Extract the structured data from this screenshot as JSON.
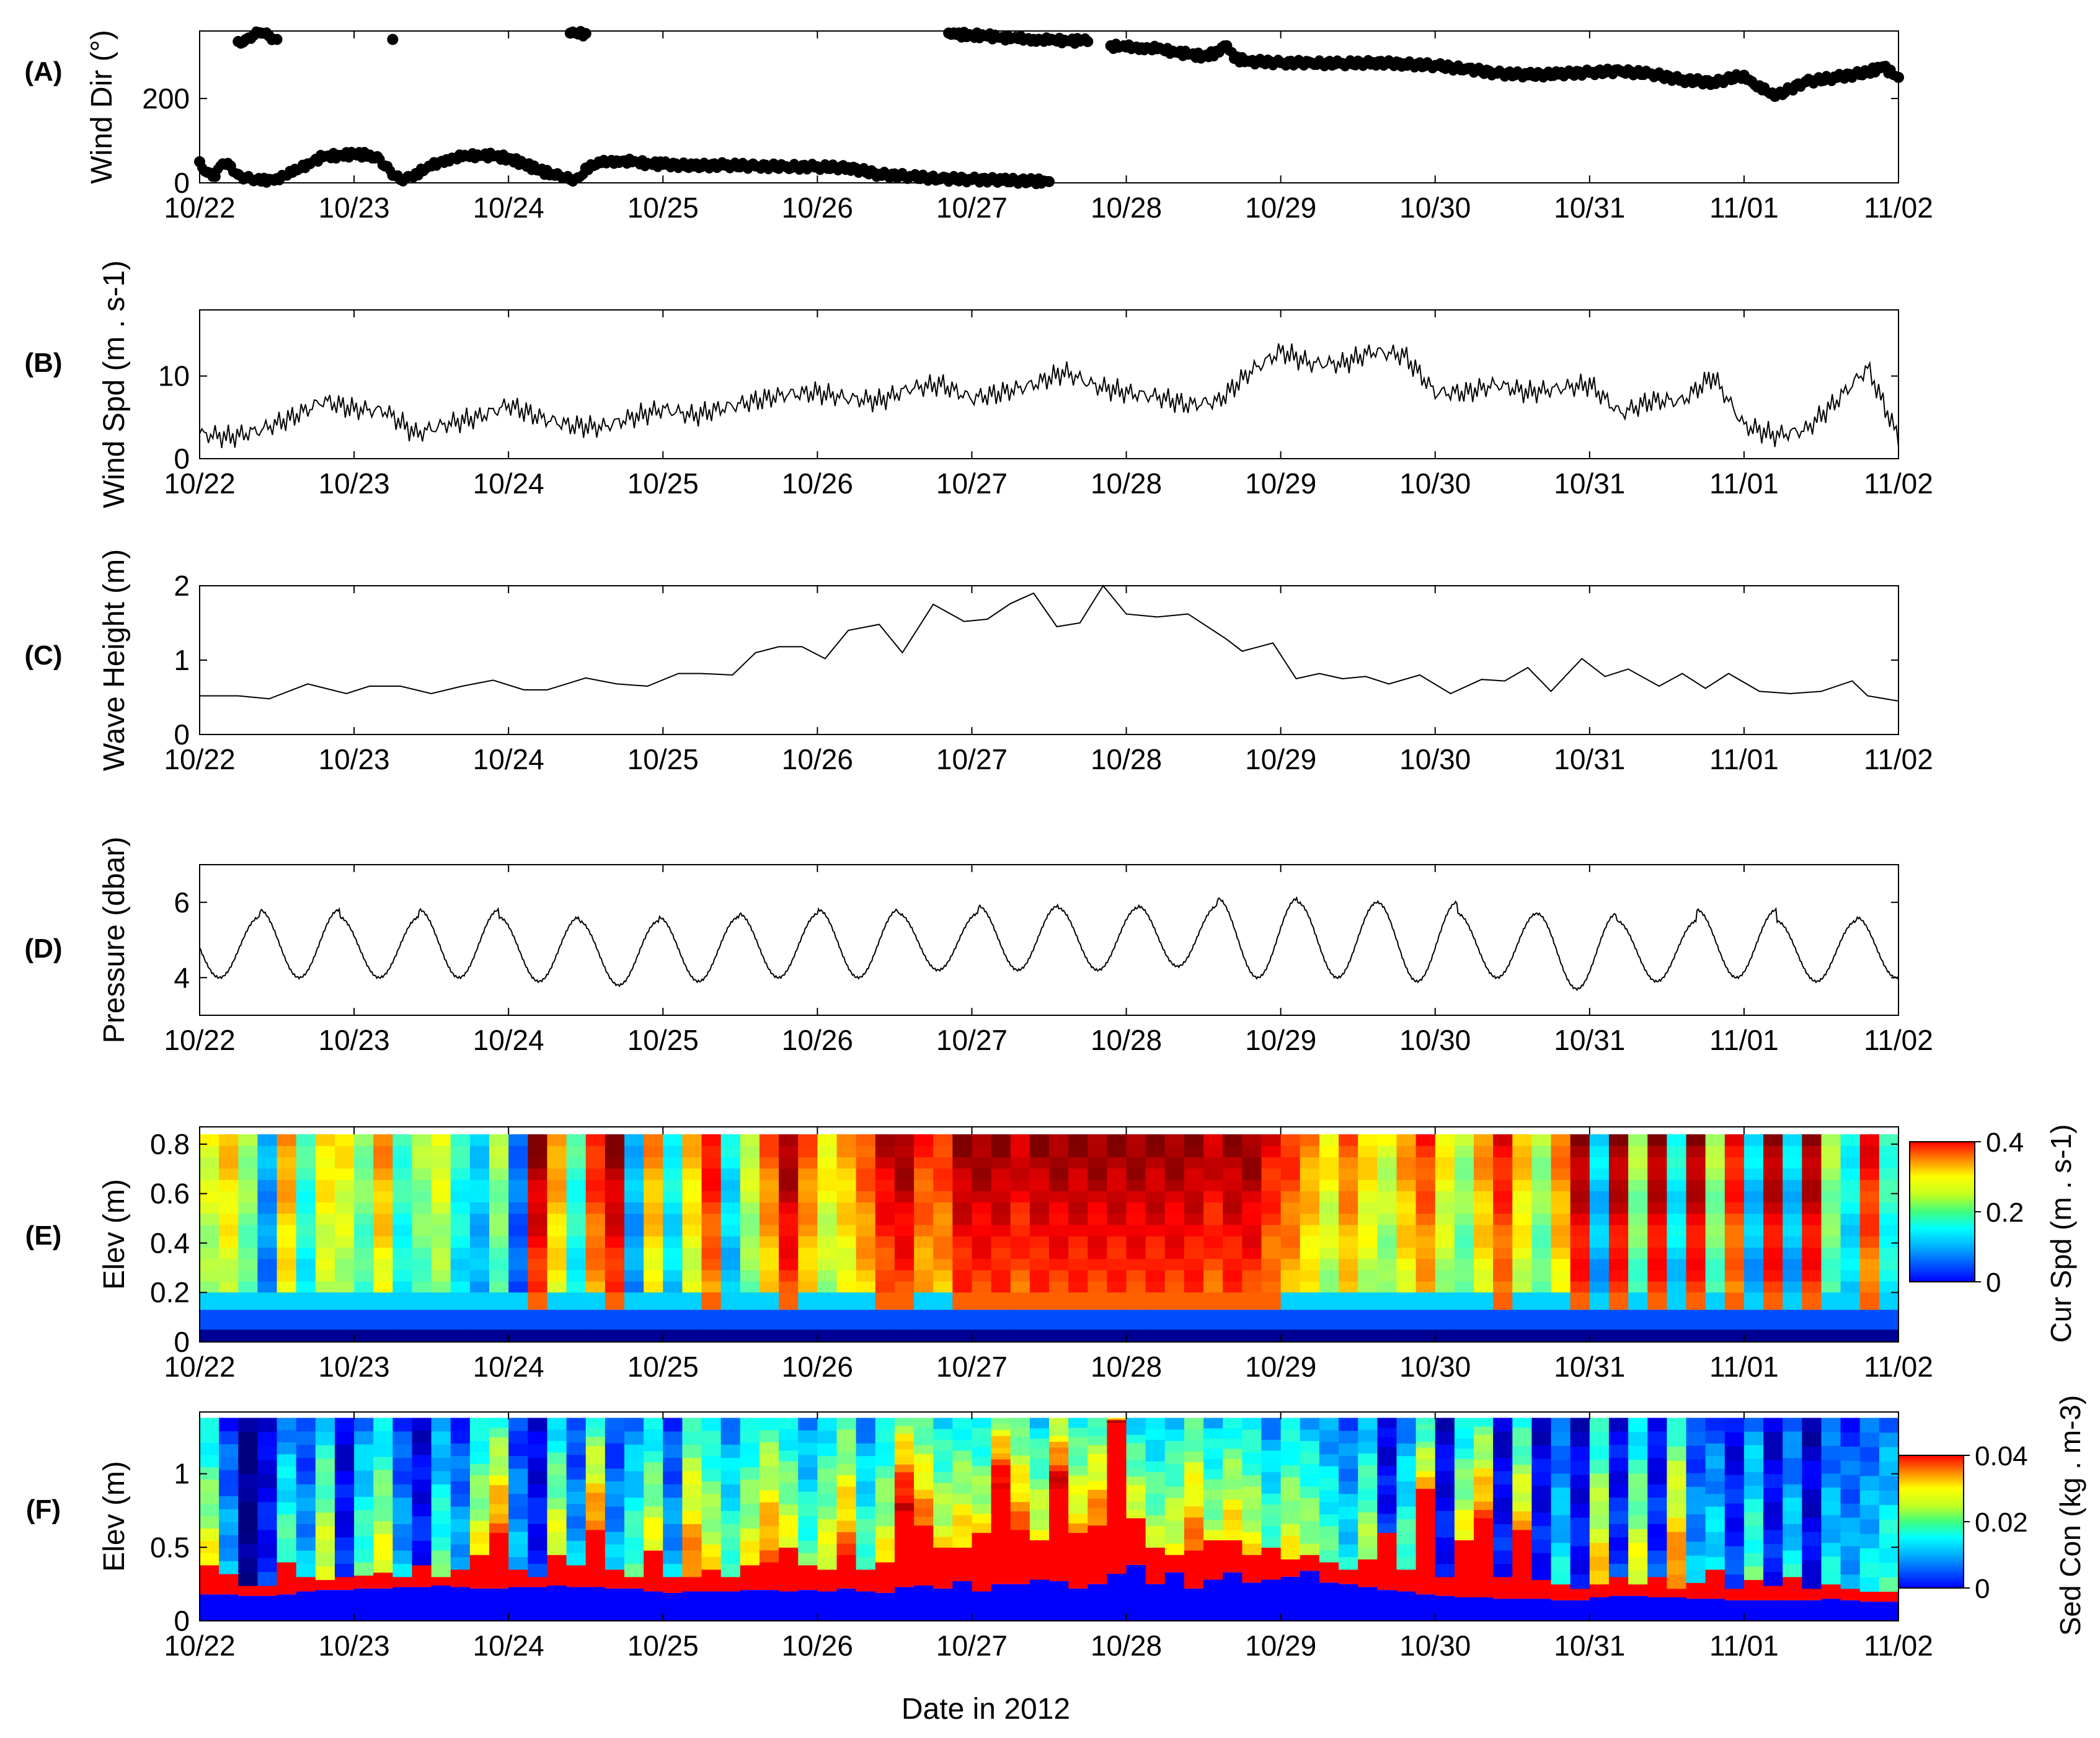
{
  "chart_data": [
    {
      "id": "A",
      "panel_label": "(A)",
      "type": "scatter",
      "ylabel": "Wind Dir (°)",
      "ylim": [
        0,
        360
      ],
      "yticks": [
        0,
        200
      ],
      "xticks": [
        "10/22",
        "10/23",
        "10/24",
        "10/25",
        "10/26",
        "10/27",
        "10/28",
        "10/29",
        "10/30",
        "10/31",
        "11/01",
        "11/02"
      ],
      "xlim_days": [
        0,
        11
      ],
      "series": [
        {
          "x": [
            0,
            0.05,
            0.1,
            0.15,
            0.2,
            0.25,
            0.3,
            0.35,
            0.4,
            0.5,
            0.6,
            0.7,
            0.8,
            0.9,
            1.0,
            1.1,
            1.15,
            1.2,
            1.25,
            1.3,
            1.35,
            1.4,
            1.5,
            1.6,
            1.7,
            1.8,
            1.9,
            2.0,
            2.1,
            2.2,
            2.3,
            2.35,
            2.4,
            2.45,
            2.5,
            2.6,
            2.7,
            2.8,
            2.9,
            3.0,
            3.2,
            3.4,
            3.6,
            3.8,
            4.0,
            4.2,
            4.4,
            4.6,
            4.8,
            5.0,
            5.2,
            5.4,
            5.5
          ],
          "y": [
            50,
            25,
            15,
            45,
            40,
            20,
            12,
            5,
            4,
            10,
            25,
            45,
            62,
            65,
            68,
            66,
            62,
            40,
            18,
            8,
            15,
            22,
            40,
            55,
            62,
            66,
            64,
            58,
            45,
            30,
            18,
            12,
            8,
            12,
            35,
            48,
            52,
            50,
            46,
            44,
            40,
            42,
            40,
            38,
            38,
            36,
            20,
            15,
            10,
            8,
            6,
            4,
            3
          ]
        },
        {
          "x": [
            0.25,
            0.3,
            0.35,
            0.4,
            0.45,
            0.5,
            1.25,
            2.4,
            2.5,
            4.85,
            4.9,
            5.0,
            5.1,
            5.2,
            5.3,
            5.4,
            5.5,
            5.6,
            5.7,
            5.75
          ],
          "y": [
            335,
            340,
            350,
            355,
            348,
            340,
            340,
            355,
            354,
            355,
            352,
            350,
            348,
            345,
            342,
            340,
            338,
            338,
            336,
            335
          ]
        },
        {
          "x": [
            5.9,
            6.0,
            6.1,
            6.2,
            6.3,
            6.4,
            6.5,
            6.6,
            6.65,
            6.7,
            6.8,
            7.0,
            7.2,
            7.4,
            7.6,
            7.8,
            8.0,
            8.2,
            8.4,
            8.6,
            8.8,
            9.0,
            9.2,
            9.4,
            9.6,
            9.8,
            10.0,
            10.05,
            10.1,
            10.2,
            10.4,
            10.6,
            10.8,
            10.9,
            11.0
          ],
          "y": [
            325,
            322,
            320,
            318,
            312,
            305,
            300,
            310,
            325,
            295,
            288,
            285,
            284,
            283,
            285,
            282,
            278,
            270,
            260,
            256,
            258,
            262,
            265,
            258,
            244,
            238,
            255,
            240,
            230,
            205,
            240,
            250,
            262,
            275,
            250
          ]
        }
      ]
    },
    {
      "id": "B",
      "panel_label": "(B)",
      "type": "line",
      "ylabel": "Wind Spd (m . s-1)",
      "ylim": [
        0,
        18
      ],
      "yticks": [
        0,
        10
      ],
      "xticks": [
        "10/22",
        "10/23",
        "10/24",
        "10/25",
        "10/26",
        "10/27",
        "10/28",
        "10/29",
        "10/30",
        "10/31",
        "11/01",
        "11/02"
      ],
      "xlim_days": [
        0,
        11
      ],
      "series": [
        {
          "x": [
            0,
            0.2,
            0.4,
            0.6,
            0.8,
            1.0,
            1.2,
            1.4,
            1.6,
            1.8,
            2.0,
            2.2,
            2.4,
            2.6,
            2.8,
            3.0,
            3.2,
            3.4,
            3.6,
            3.8,
            4.0,
            4.2,
            4.4,
            4.6,
            4.8,
            5.0,
            5.2,
            5.4,
            5.6,
            5.8,
            6.0,
            6.2,
            6.4,
            6.6,
            6.8,
            7.0,
            7.2,
            7.4,
            7.6,
            7.8,
            8.0,
            8.2,
            8.4,
            8.6,
            8.8,
            9.0,
            9.2,
            9.4,
            9.6,
            9.8,
            10.0,
            10.2,
            10.4,
            10.6,
            10.8,
            11.0
          ],
          "y": [
            3,
            2.6,
            3.5,
            5,
            7,
            6,
            5.8,
            3,
            4.2,
            5,
            6.5,
            5,
            4,
            3.8,
            5,
            6,
            5.2,
            6.2,
            7,
            7.8,
            8,
            7.3,
            7,
            8.5,
            9,
            7.3,
            8,
            9,
            10.5,
            8.8,
            8,
            7.5,
            6.5,
            7,
            10.5,
            13,
            11.5,
            11.5,
            13,
            12.5,
            8,
            8,
            9,
            8,
            8.5,
            9,
            5.5,
            7,
            7,
            10,
            4,
            2.8,
            3.5,
            7,
            11,
            2.5
          ]
        }
      ]
    },
    {
      "id": "C",
      "panel_label": "(C)",
      "type": "line",
      "ylabel": "Wave Height (m)",
      "ylim": [
        0,
        2
      ],
      "yticks": [
        0,
        1,
        2
      ],
      "xticks": [
        "10/22",
        "10/23",
        "10/24",
        "10/25",
        "10/26",
        "10/27",
        "10/28",
        "10/29",
        "10/30",
        "10/31",
        "11/01",
        "11/02"
      ],
      "xlim_days": [
        0,
        11
      ],
      "series": [
        {
          "x": [
            0,
            0.25,
            0.45,
            0.7,
            0.95,
            1.1,
            1.3,
            1.5,
            1.7,
            1.9,
            2.1,
            2.25,
            2.5,
            2.7,
            2.9,
            3.1,
            3.25,
            3.45,
            3.6,
            3.75,
            3.9,
            4.05,
            4.2,
            4.4,
            4.55,
            4.75,
            4.95,
            5.1,
            5.25,
            5.4,
            5.55,
            5.7,
            5.85,
            6.0,
            6.2,
            6.4,
            6.65,
            6.75,
            6.95,
            7.1,
            7.25,
            7.4,
            7.55,
            7.7,
            7.9,
            8.1,
            8.3,
            8.45,
            8.6,
            8.75,
            8.95,
            9.1,
            9.25,
            9.45,
            9.6,
            9.75,
            9.9,
            10.1,
            10.3,
            10.5,
            10.7,
            10.8,
            11.0
          ],
          "y": [
            0.52,
            0.52,
            0.48,
            0.68,
            0.55,
            0.65,
            0.65,
            0.55,
            0.65,
            0.73,
            0.6,
            0.6,
            0.76,
            0.68,
            0.65,
            0.82,
            0.82,
            0.8,
            1.1,
            1.18,
            1.18,
            1.02,
            1.4,
            1.48,
            1.1,
            1.75,
            1.52,
            1.55,
            1.76,
            1.9,
            1.45,
            1.5,
            2.0,
            1.62,
            1.58,
            1.62,
            1.28,
            1.12,
            1.23,
            0.75,
            0.82,
            0.75,
            0.78,
            0.68,
            0.8,
            0.55,
            0.74,
            0.72,
            0.9,
            0.58,
            1.02,
            0.78,
            0.88,
            0.65,
            0.82,
            0.62,
            0.82,
            0.58,
            0.55,
            0.58,
            0.72,
            0.52,
            0.45
          ]
        }
      ]
    },
    {
      "id": "D",
      "panel_label": "(D)",
      "type": "line",
      "ylabel": "Pressure (dbar)",
      "ylim": [
        3,
        7
      ],
      "yticks": [
        4,
        6
      ],
      "xticks": [
        "10/22",
        "10/23",
        "10/24",
        "10/25",
        "10/26",
        "10/27",
        "10/28",
        "10/29",
        "10/30",
        "10/31",
        "11/01",
        "11/02"
      ],
      "xlim_days": [
        0,
        11
      ],
      "series": [
        {
          "name": "",
          "tide_period_days": 0.517,
          "peaks": [
            5.6,
            5.8,
            5.6,
            5.8,
            5.6,
            5.5,
            5.6,
            5.7,
            5.8,
            5.7,
            5.9,
            5.85,
            5.9,
            6.1,
            6.0,
            6.0,
            5.7,
            5.7,
            5.5,
            5.8,
            5.5,
            5.6,
            5.2
          ],
          "troughs": [
            4.0,
            4.0,
            4.0,
            4.0,
            3.9,
            3.8,
            3.9,
            4.0,
            4.0,
            4.2,
            4.2,
            4.2,
            4.3,
            4.0,
            4.0,
            3.9,
            4.0,
            3.7,
            3.9,
            4.0,
            3.9,
            4.0
          ]
        }
      ]
    },
    {
      "id": "E",
      "panel_label": "(E)",
      "type": "heatmap",
      "ylabel": "Elev (m)",
      "ylim": [
        0,
        0.87
      ],
      "yticks": [
        0,
        0.2,
        0.4,
        0.6,
        0.8
      ],
      "xticks": [
        "10/22",
        "10/23",
        "10/24",
        "10/25",
        "10/26",
        "10/27",
        "10/28",
        "10/29",
        "10/30",
        "10/31",
        "11/01",
        "11/02"
      ],
      "xlim_days": [
        0,
        11
      ],
      "colorbar": {
        "label": "Cur Spd (m . s-1)",
        "min": 0,
        "max": 0.4,
        "ticks": [
          "0",
          "0.2",
          "0.4"
        ]
      },
      "columns": 88,
      "top_elev": 0.84,
      "upper_values": [
        0.25,
        0.28,
        0.22,
        0.12,
        0.3,
        0.18,
        0.27,
        0.26,
        0.21,
        0.3,
        0.18,
        0.22,
        0.25,
        0.17,
        0.14,
        0.22,
        0.1,
        0.4,
        0.3,
        0.18,
        0.35,
        0.4,
        0.13,
        0.3,
        0.16,
        0.28,
        0.36,
        0.15,
        0.24,
        0.32,
        0.4,
        0.32,
        0.26,
        0.29,
        0.33,
        0.38,
        0.4,
        0.34,
        0.34,
        0.4,
        0.4,
        0.4,
        0.38,
        0.4,
        0.4,
        0.4,
        0.4,
        0.4,
        0.4,
        0.4,
        0.4,
        0.4,
        0.38,
        0.4,
        0.4,
        0.36,
        0.34,
        0.3,
        0.26,
        0.32,
        0.27,
        0.24,
        0.3,
        0.34,
        0.26,
        0.22,
        0.3,
        0.36,
        0.28,
        0.22,
        0.31,
        0.4,
        0.14,
        0.4,
        0.22,
        0.4,
        0.16,
        0.4,
        0.22,
        0.36,
        0.14,
        0.4,
        0.14,
        0.4,
        0.22,
        0.16,
        0.36,
        0.18
      ]
    },
    {
      "id": "F",
      "panel_label": "(F)",
      "type": "heatmap",
      "ylabel": "Elev (m)",
      "ylim": [
        0,
        1.42
      ],
      "yticks": [
        0,
        0.5,
        1
      ],
      "xticks": [
        "10/22",
        "10/23",
        "10/24",
        "10/25",
        "10/26",
        "10/27",
        "10/28",
        "10/29",
        "10/30",
        "10/31",
        "11/01",
        "11/02"
      ],
      "xlim_days": [
        0,
        11
      ],
      "colorbar": {
        "label": "Sed Con (kg . m-3)",
        "min": 0,
        "max": 0.04,
        "ticks": [
          "0",
          "0.02",
          "0.04"
        ]
      },
      "columns": 88,
      "top_elev": 1.38,
      "bed_elev": [
        0.18,
        0.18,
        0.17,
        0.17,
        0.18,
        0.2,
        0.21,
        0.21,
        0.22,
        0.22,
        0.23,
        0.23,
        0.24,
        0.23,
        0.22,
        0.22,
        0.23,
        0.23,
        0.24,
        0.23,
        0.23,
        0.22,
        0.22,
        0.2,
        0.19,
        0.2,
        0.2,
        0.2,
        0.21,
        0.21,
        0.2,
        0.21,
        0.2,
        0.22,
        0.2,
        0.19,
        0.23,
        0.24,
        0.22,
        0.27,
        0.2,
        0.25,
        0.25,
        0.28,
        0.27,
        0.22,
        0.25,
        0.32,
        0.38,
        0.25,
        0.33,
        0.22,
        0.28,
        0.33,
        0.26,
        0.28,
        0.3,
        0.34,
        0.26,
        0.25,
        0.23,
        0.21,
        0.2,
        0.18,
        0.17,
        0.16,
        0.16,
        0.15,
        0.15,
        0.15,
        0.14,
        0.14,
        0.16,
        0.17,
        0.17,
        0.16,
        0.16,
        0.15,
        0.15,
        0.14,
        0.14,
        0.14,
        0.14,
        0.14,
        0.15,
        0.14,
        0.13,
        0.13
      ],
      "red_top": [
        0.38,
        0.32,
        0.24,
        0.24,
        0.4,
        0.3,
        0.28,
        0.3,
        0.31,
        0.33,
        0.3,
        0.38,
        0.3,
        0.35,
        0.45,
        0.6,
        0.35,
        0.3,
        0.45,
        0.38,
        0.62,
        0.35,
        0.3,
        0.48,
        0.3,
        0.3,
        0.35,
        0.3,
        0.38,
        0.4,
        0.5,
        0.38,
        0.35,
        0.45,
        0.35,
        0.4,
        0.75,
        0.65,
        0.5,
        0.5,
        0.6,
        0.9,
        0.62,
        0.55,
        0.9,
        0.6,
        0.65,
        1.35,
        0.7,
        0.5,
        0.45,
        0.48,
        0.55,
        0.55,
        0.45,
        0.5,
        0.42,
        0.45,
        0.4,
        0.35,
        0.42,
        0.6,
        0.35,
        0.9,
        0.3,
        0.55,
        0.7,
        0.3,
        0.62,
        0.28,
        0.25,
        0.22,
        0.25,
        0.3,
        0.25,
        0.3,
        0.22,
        0.26,
        0.35,
        0.22,
        0.28,
        0.24,
        0.3,
        0.22,
        0.25,
        0.22,
        0.2,
        0.2
      ],
      "upper_level": [
        0.02,
        0.01,
        0.0,
        0.005,
        0.015,
        0.01,
        0.02,
        0.005,
        0.015,
        0.02,
        0.01,
        0.005,
        0.015,
        0.01,
        0.02,
        0.025,
        0.01,
        0.005,
        0.02,
        0.01,
        0.025,
        0.01,
        0.015,
        0.02,
        0.01,
        0.025,
        0.02,
        0.015,
        0.02,
        0.025,
        0.02,
        0.015,
        0.02,
        0.025,
        0.015,
        0.02,
        0.03,
        0.025,
        0.02,
        0.022,
        0.02,
        0.03,
        0.025,
        0.02,
        0.03,
        0.022,
        0.025,
        0.035,
        0.02,
        0.018,
        0.02,
        0.025,
        0.018,
        0.022,
        0.02,
        0.015,
        0.02,
        0.018,
        0.015,
        0.012,
        0.018,
        0.005,
        0.015,
        0.022,
        0.005,
        0.02,
        0.025,
        0.005,
        0.022,
        0.005,
        0.012,
        0.005,
        0.022,
        0.006,
        0.02,
        0.006,
        0.025,
        0.01,
        0.012,
        0.006,
        0.015,
        0.005,
        0.012,
        0.004,
        0.012,
        0.01,
        0.012,
        0.014
      ]
    }
  ],
  "shared_xlabel": "Date in 2012"
}
